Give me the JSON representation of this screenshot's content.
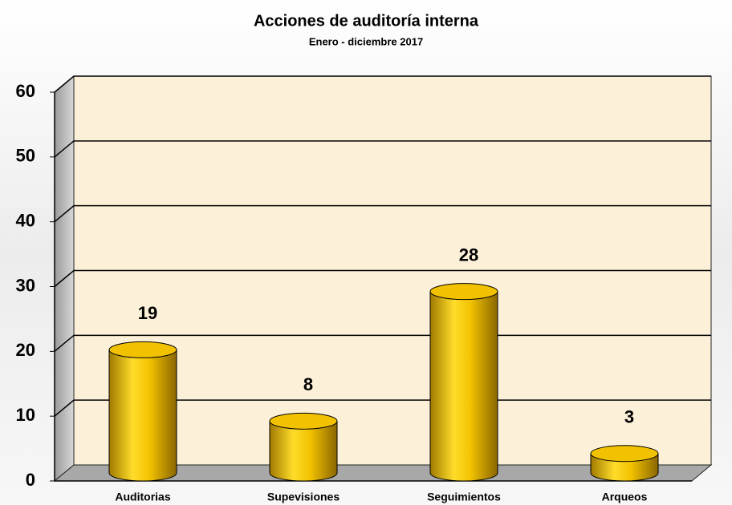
{
  "chart_data": {
    "type": "bar",
    "title": "Acciones de auditoría interna",
    "subtitle": "Enero  -  diciembre 2017",
    "categories": [
      "Auditorias",
      "Supevisiones",
      "Seguimientos",
      "Arqueos"
    ],
    "values": [
      19,
      8,
      28,
      3
    ],
    "color": "#f2c200",
    "ylim": [
      0,
      60
    ],
    "yticks": [
      0,
      10,
      20,
      30,
      40,
      50,
      60
    ],
    "grid": true
  }
}
